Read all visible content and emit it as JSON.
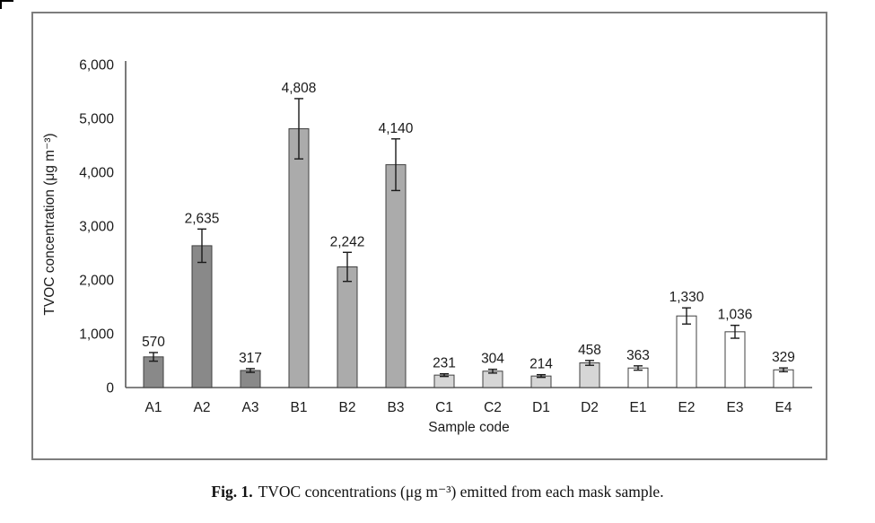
{
  "figure": {
    "caption_label": "Fig. 1.",
    "caption_text": "TVOC concentrations (μg m⁻³) emitted from each mask sample."
  },
  "chart_data": {
    "type": "bar",
    "title": "",
    "xlabel": "Sample code",
    "ylabel": "TVOC concentration (μg m⁻³)",
    "ylim": [
      0,
      6000
    ],
    "ytick_interval": 1000,
    "yticks": [
      "6,000",
      "5,000",
      "4,000",
      "3,000",
      "2,000",
      "1,000",
      "0"
    ],
    "grid": false,
    "legend": "none",
    "categories": [
      "A1",
      "A2",
      "A3",
      "B1",
      "B2",
      "B3",
      "C1",
      "C2",
      "D1",
      "D2",
      "E1",
      "E2",
      "E3",
      "E4"
    ],
    "values": [
      570,
      2635,
      317,
      4808,
      2242,
      4140,
      231,
      304,
      214,
      458,
      363,
      1330,
      1036,
      329
    ],
    "value_labels": [
      "570",
      "2,635",
      "317",
      "4,808",
      "2,242",
      "4,140",
      "231",
      "304",
      "214",
      "458",
      "363",
      "1,330",
      "1,036",
      "329"
    ],
    "errors": [
      80,
      310,
      35,
      560,
      270,
      480,
      25,
      35,
      25,
      45,
      40,
      150,
      120,
      35
    ],
    "bar_colors": [
      "#898989",
      "#898989",
      "#898989",
      "#ababab",
      "#ababab",
      "#ababab",
      "#d6d6d6",
      "#d6d6d6",
      "#d6d6d6",
      "#d6d6d6",
      "#ffffff",
      "#ffffff",
      "#ffffff",
      "#ffffff"
    ],
    "bar_border_color": "#404040",
    "error_bar_color": "#1a1a1a",
    "axis_color": "#595959",
    "panel_border_color": "#7d7d7d"
  }
}
